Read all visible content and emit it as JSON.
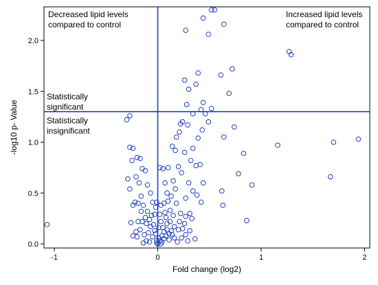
{
  "chart_data": {
    "type": "scatter",
    "title": "",
    "xlabel": "Fold change (log2)",
    "ylabel": "-log10 p- Value",
    "xlim": [
      -1.1,
      2.05
    ],
    "ylim": [
      -0.04,
      2.33
    ],
    "xticks": [
      -1,
      0,
      1,
      2
    ],
    "yticks": [
      0.0,
      0.5,
      1.0,
      1.5,
      2.0
    ],
    "ytick_labels": [
      "0.0",
      "0.5",
      "1.0",
      "1.5",
      "2.0"
    ],
    "grid": false,
    "legend": "none",
    "marker": "open-circle",
    "marker_color": "#1f3fbf",
    "reference_lines": [
      {
        "orientation": "vertical",
        "value": 0,
        "color": "#1f3fbf"
      },
      {
        "orientation": "horizontal",
        "value": 1.3,
        "color": "#1f3fbf"
      }
    ],
    "annotations": {
      "top_left_line1": "Decreased lipid levels",
      "top_left_line2": "compared to control",
      "top_right_line1": "Increased lipid levels",
      "top_right_line2": "compared to control",
      "sig_line1": "Statistically",
      "sig_line2": "significant",
      "insig_line1": "Statistically",
      "insig_line2": "insignificant"
    },
    "points": [
      [
        -1.07,
        0.19
      ],
      [
        1.94,
        1.03
      ],
      [
        1.7,
        1.0
      ],
      [
        1.67,
        0.66
      ],
      [
        1.27,
        1.89
      ],
      [
        1.29,
        1.86
      ],
      [
        1.16,
        0.97
      ],
      [
        0.91,
        0.58
      ],
      [
        0.86,
        0.23
      ],
      [
        0.83,
        0.89
      ],
      [
        0.78,
        0.69
      ],
      [
        0.74,
        1.15
      ],
      [
        0.72,
        1.72
      ],
      [
        0.69,
        1.48
      ],
      [
        0.64,
        1.05
      ],
      [
        0.63,
        0.38
      ],
      [
        0.62,
        0.52
      ],
      [
        0.61,
        1.66
      ],
      [
        0.64,
        2.16
      ],
      [
        0.55,
        2.3
      ],
      [
        0.52,
        2.3
      ],
      [
        0.49,
        2.06
      ],
      [
        0.44,
        2.22
      ],
      [
        0.27,
        2.1
      ],
      [
        0.39,
        1.68
      ],
      [
        0.37,
        1.57
      ],
      [
        0.26,
        1.61
      ],
      [
        0.3,
        1.52
      ],
      [
        0.52,
        1.33
      ],
      [
        0.44,
        1.39
      ],
      [
        0.46,
        1.28
      ],
      [
        0.42,
        1.32
      ],
      [
        0.34,
        1.28
      ],
      [
        0.28,
        1.37
      ],
      [
        0.49,
        1.2
      ],
      [
        0.43,
        1.12
      ],
      [
        0.39,
        1.04
      ],
      [
        0.34,
        0.94
      ],
      [
        0.29,
        1.17
      ],
      [
        0.22,
        1.18
      ],
      [
        0.24,
        1.2
      ],
      [
        0.21,
        1.1
      ],
      [
        0.18,
        1.05
      ],
      [
        0.17,
        0.92
      ],
      [
        0.14,
        0.96
      ],
      [
        0.26,
        0.9
      ],
      [
        0.32,
        0.82
      ],
      [
        0.37,
        0.77
      ],
      [
        0.41,
        0.78
      ],
      [
        0.44,
        0.6
      ],
      [
        0.38,
        0.48
      ],
      [
        0.42,
        0.41
      ],
      [
        0.34,
        0.52
      ],
      [
        0.3,
        0.6
      ],
      [
        0.27,
        0.45
      ],
      [
        0.23,
        0.7
      ],
      [
        0.2,
        0.76
      ],
      [
        0.15,
        0.62
      ],
      [
        0.1,
        0.75
      ],
      [
        0.07,
        0.6
      ],
      [
        0.05,
        0.74
      ],
      [
        0.02,
        0.75
      ],
      [
        0.09,
        0.5
      ],
      [
        0.13,
        0.47
      ],
      [
        0.17,
        0.54
      ],
      [
        0.1,
        0.42
      ],
      [
        0.06,
        0.4
      ],
      [
        0.03,
        0.38
      ],
      [
        0.18,
        0.4
      ],
      [
        0.22,
        0.3
      ],
      [
        0.27,
        0.27
      ],
      [
        0.31,
        0.3
      ],
      [
        0.33,
        0.25
      ],
      [
        0.26,
        0.2
      ],
      [
        0.2,
        0.14
      ],
      [
        0.16,
        0.17
      ],
      [
        0.12,
        0.22
      ],
      [
        0.08,
        0.26
      ],
      [
        0.05,
        0.16
      ],
      [
        0.03,
        0.22
      ],
      [
        0.01,
        0.06
      ],
      [
        0.04,
        0.02
      ],
      [
        0.08,
        0.08
      ],
      [
        0.11,
        0.04
      ],
      [
        0.14,
        0.09
      ],
      [
        0.19,
        0.02
      ],
      [
        0.23,
        0.06
      ],
      [
        0.27,
        0.09
      ],
      [
        0.31,
        0.13
      ],
      [
        0.36,
        0.05
      ],
      [
        0.06,
        0.12
      ],
      [
        0.09,
        0.14
      ],
      [
        0.13,
        0.13
      ],
      [
        0.02,
        0.29
      ],
      [
        0.07,
        0.31
      ],
      [
        0.12,
        0.33
      ],
      [
        -0.3,
        1.22
      ],
      [
        -0.27,
        1.26
      ],
      [
        -0.27,
        0.95
      ],
      [
        -0.24,
        0.94
      ],
      [
        -0.2,
        0.85
      ],
      [
        -0.17,
        0.84
      ],
      [
        -0.25,
        0.82
      ],
      [
        -0.15,
        0.74
      ],
      [
        -0.12,
        0.72
      ],
      [
        -0.27,
        0.54
      ],
      [
        -0.29,
        0.64
      ],
      [
        -0.21,
        0.66
      ],
      [
        -0.18,
        0.6
      ],
      [
        -0.1,
        0.58
      ],
      [
        -0.07,
        0.5
      ],
      [
        -0.16,
        0.47
      ],
      [
        -0.22,
        0.41
      ],
      [
        -0.19,
        0.4
      ],
      [
        -0.24,
        0.38
      ],
      [
        -0.14,
        0.38
      ],
      [
        -0.1,
        0.32
      ],
      [
        -0.06,
        0.28
      ],
      [
        -0.02,
        0.36
      ],
      [
        -0.19,
        0.22
      ],
      [
        -0.15,
        0.22
      ],
      [
        -0.11,
        0.2
      ],
      [
        -0.07,
        0.17
      ],
      [
        -0.04,
        0.19
      ],
      [
        -0.21,
        0.12
      ],
      [
        -0.17,
        0.14
      ],
      [
        -0.13,
        0.09
      ],
      [
        -0.09,
        0.11
      ],
      [
        -0.05,
        0.07
      ],
      [
        -0.02,
        0.1
      ],
      [
        -0.01,
        0.03
      ],
      [
        -0.11,
        0.03
      ],
      [
        -0.08,
        0.02
      ],
      [
        -0.14,
        0.01
      ],
      [
        -0.24,
        0.08
      ],
      [
        -0.26,
        0.21
      ],
      [
        -0.16,
        0.32
      ],
      [
        -0.12,
        0.26
      ],
      [
        -0.08,
        0.24
      ],
      [
        -0.03,
        0.13
      ],
      [
        0.01,
        0.16
      ],
      [
        -0.05,
        0.41
      ],
      [
        -0.01,
        0.41
      ],
      [
        -0.03,
        0.29
      ],
      [
        -0.2,
        0.07
      ],
      [
        0.02,
        0.03
      ],
      [
        0.04,
        0.08
      ],
      [
        0.06,
        0.05
      ],
      [
        0.09,
        0.2
      ],
      [
        0.15,
        0.28
      ],
      [
        0.16,
        0.06
      ],
      [
        0.21,
        0.22
      ],
      [
        0.24,
        0.15
      ],
      [
        0.29,
        0.03
      ],
      [
        0.11,
        0.1
      ],
      [
        0.0,
        0.0
      ],
      [
        -0.01,
        0.01
      ],
      [
        0.03,
        0.0
      ]
    ]
  }
}
